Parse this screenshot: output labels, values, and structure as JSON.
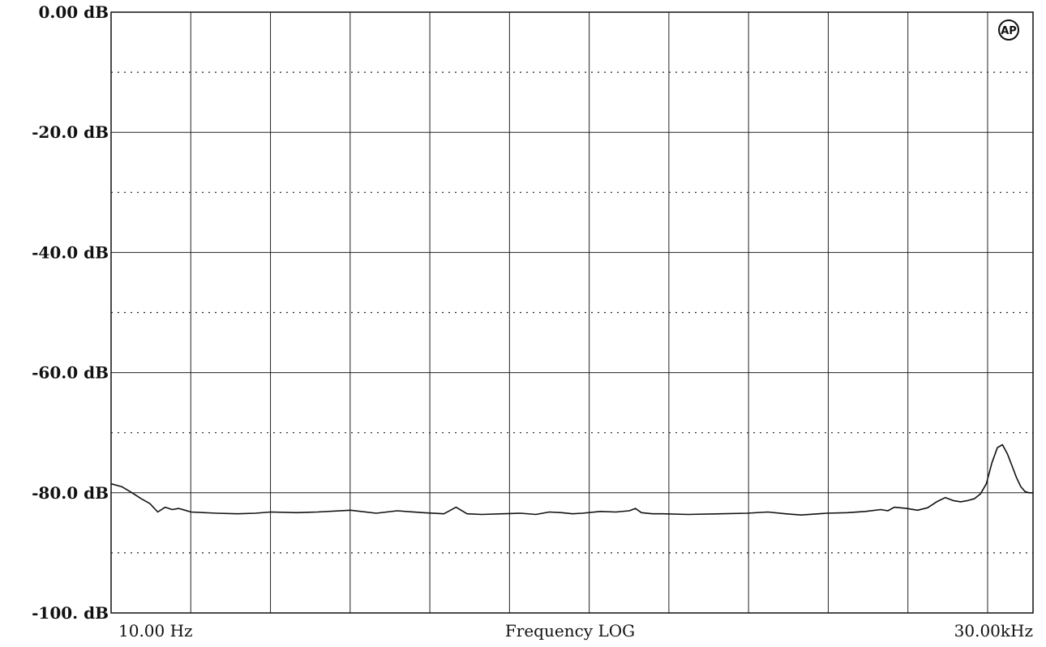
{
  "chart_data": {
    "type": "line",
    "title": "",
    "xlabel": "Frequency LOG",
    "ylabel": "",
    "x_scale": "log",
    "xlim": [
      10,
      30000
    ],
    "ylim": [
      -100,
      0
    ],
    "grid": true,
    "x_start_label": "10.00 Hz",
    "x_end_label": "30.00kHz",
    "y_tick_labels": [
      {
        "value": 0,
        "text": "0.00 dB"
      },
      {
        "value": -20,
        "text": "-20.0 dB"
      },
      {
        "value": -40,
        "text": "-40.0 dB"
      },
      {
        "value": -60,
        "text": "-60.0 dB"
      },
      {
        "value": -80,
        "text": "-80.0 dB"
      },
      {
        "value": -100,
        "text": "-100. dB"
      }
    ],
    "series": [
      {
        "color": "#111111",
        "x": [
          10,
          11,
          12,
          13,
          14,
          15,
          16,
          17,
          18,
          19,
          20,
          25,
          30,
          35,
          40,
          50,
          60,
          80,
          100,
          120,
          150,
          180,
          200,
          220,
          250,
          300,
          350,
          400,
          450,
          500,
          550,
          600,
          700,
          800,
          900,
          950,
          1000,
          1100,
          1200,
          1500,
          2000,
          2500,
          3000,
          3500,
          4000,
          5000,
          6000,
          7000,
          8000,
          8500,
          9000,
          10000,
          11000,
          12000,
          13000,
          14000,
          15000,
          16000,
          17000,
          18000,
          19000,
          20000,
          21000,
          22000,
          23000,
          24000,
          25000,
          26000,
          27000,
          28000,
          29000,
          30000
        ],
        "y": [
          -78.5,
          -79.0,
          -80.0,
          -81.0,
          -81.8,
          -83.2,
          -82.4,
          -82.8,
          -82.6,
          -82.9,
          -83.2,
          -83.4,
          -83.5,
          -83.4,
          -83.2,
          -83.3,
          -83.2,
          -82.9,
          -83.4,
          -83.0,
          -83.3,
          -83.5,
          -82.4,
          -83.5,
          -83.6,
          -83.5,
          -83.4,
          -83.6,
          -83.2,
          -83.3,
          -83.5,
          -83.4,
          -83.1,
          -83.2,
          -83.0,
          -82.6,
          -83.3,
          -83.5,
          -83.5,
          -83.6,
          -83.5,
          -83.4,
          -83.2,
          -83.5,
          -83.7,
          -83.4,
          -83.3,
          -83.1,
          -82.8,
          -83.0,
          -82.4,
          -82.6,
          -82.9,
          -82.5,
          -81.5,
          -80.8,
          -81.3,
          -81.5,
          -81.3,
          -81.0,
          -80.2,
          -78.5,
          -75.0,
          -72.5,
          -72.0,
          -73.5,
          -75.5,
          -77.5,
          -79.0,
          -79.8,
          -80.0,
          -80.0
        ]
      }
    ]
  }
}
